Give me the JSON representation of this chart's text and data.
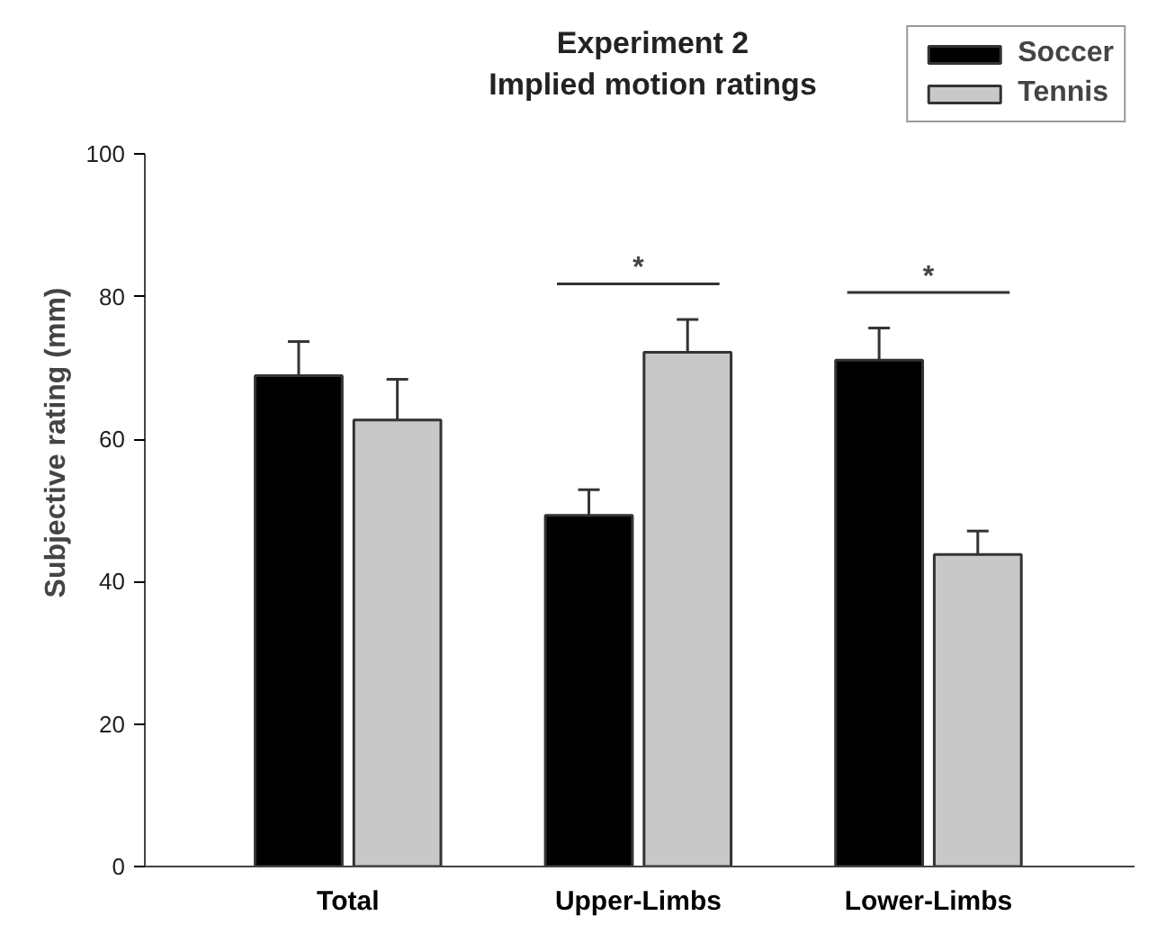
{
  "chart_data": {
    "type": "bar",
    "title": "Experiment 2\nImplied motion ratings",
    "ylabel": "Subjective rating (mm)",
    "categories": [
      "Total",
      "Upper-Limbs",
      "Lower-Limbs"
    ],
    "series": [
      {
        "name": "Soccer",
        "color": "#000000",
        "values": [
          68.9,
          49.3,
          71.1
        ],
        "errors": [
          4.8,
          3.6,
          4.5
        ]
      },
      {
        "name": "Tennis",
        "color": "#c8c8c8",
        "values": [
          62.7,
          72.2,
          43.8
        ],
        "errors": [
          5.7,
          4.6,
          3.3
        ]
      }
    ],
    "ylim": [
      0,
      100
    ],
    "yticks": [
      0,
      20,
      40,
      60,
      80,
      100
    ],
    "grid": false,
    "legend": "top right",
    "annotations": [
      "*",
      "*"
    ]
  }
}
